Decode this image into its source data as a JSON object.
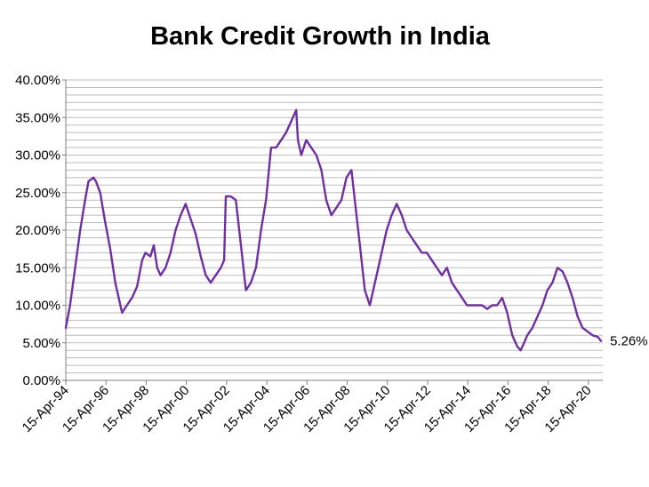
{
  "colors": {
    "series": "#7030a0",
    "grid": "#bdbdbd",
    "axis": "#7f7f7f"
  },
  "chart_data": {
    "type": "line",
    "title": "Bank Credit Growth in India",
    "xlabel": "",
    "ylabel": "",
    "ylim": [
      0,
      0.4
    ],
    "xlim": [
      "1994-04-15",
      "2021-01-01"
    ],
    "grid": true,
    "legend": "none",
    "y_ticks": [
      {
        "value": 0.0,
        "label": "0.00%"
      },
      {
        "value": 0.05,
        "label": "5.00%"
      },
      {
        "value": 0.1,
        "label": "10.00%"
      },
      {
        "value": 0.15,
        "label": "15.00%"
      },
      {
        "value": 0.2,
        "label": "20.00%"
      },
      {
        "value": 0.25,
        "label": "25.00%"
      },
      {
        "value": 0.3,
        "label": "30.00%"
      },
      {
        "value": 0.35,
        "label": "35.00%"
      },
      {
        "value": 0.4,
        "label": "40.00%"
      }
    ],
    "x_ticks": [
      {
        "value": "1994-04-15",
        "label": "15-Apr-94"
      },
      {
        "value": "1996-04-15",
        "label": "15-Apr-96"
      },
      {
        "value": "1998-04-15",
        "label": "15-Apr-98"
      },
      {
        "value": "2000-04-15",
        "label": "15-Apr-00"
      },
      {
        "value": "2002-04-15",
        "label": "15-Apr-02"
      },
      {
        "value": "2004-04-15",
        "label": "15-Apr-04"
      },
      {
        "value": "2006-04-15",
        "label": "15-Apr-06"
      },
      {
        "value": "2008-04-15",
        "label": "15-Apr-08"
      },
      {
        "value": "2010-04-15",
        "label": "15-Apr-10"
      },
      {
        "value": "2012-04-15",
        "label": "15-Apr-12"
      },
      {
        "value": "2014-04-15",
        "label": "15-Apr-14"
      },
      {
        "value": "2016-04-15",
        "label": "15-Apr-16"
      },
      {
        "value": "2018-04-15",
        "label": "15-Apr-18"
      },
      {
        "value": "2020-04-15",
        "label": "15-Apr-20"
      }
    ],
    "end_label": "5.26%",
    "series": [
      {
        "x": [
          "1994-04-15",
          "1994-07-01",
          "1994-10-01",
          "1995-01-01",
          "1995-04-01",
          "1995-06-01",
          "1995-09-01",
          "1995-10-15",
          "1996-01-01",
          "1996-04-01",
          "1996-07-01",
          "1996-10-01",
          "1997-01-01",
          "1997-02-01",
          "1997-05-01",
          "1997-08-01",
          "1997-11-01",
          "1998-02-01",
          "1998-04-01",
          "1998-07-01",
          "1998-09-01",
          "1998-11-01",
          "1999-01-01",
          "1999-04-01",
          "1999-07-01",
          "1999-10-01",
          "2000-01-01",
          "2000-04-01",
          "2000-07-01",
          "2000-10-01",
          "2001-01-01",
          "2001-04-01",
          "2001-07-01",
          "2001-10-01",
          "2002-01-01",
          "2002-03-01",
          "2002-04-01",
          "2002-07-01",
          "2002-10-01",
          "2003-01-01",
          "2003-04-01",
          "2003-07-01",
          "2003-10-01",
          "2004-01-01",
          "2004-04-01",
          "2004-07-01",
          "2004-10-01",
          "2005-01-01",
          "2005-04-01",
          "2005-07-01",
          "2005-10-01",
          "2005-11-01",
          "2006-01-01",
          "2006-04-01",
          "2006-07-01",
          "2006-10-01",
          "2007-01-01",
          "2007-04-01",
          "2007-07-01",
          "2007-10-01",
          "2008-01-01",
          "2008-04-01",
          "2008-07-01",
          "2008-10-01",
          "2008-12-01",
          "2009-03-01",
          "2009-06-01",
          "2009-09-01",
          "2009-12-01",
          "2010-04-01",
          "2010-07-01",
          "2010-10-01",
          "2011-01-01",
          "2011-04-01",
          "2011-07-01",
          "2011-10-01",
          "2012-01-01",
          "2012-04-01",
          "2012-07-01",
          "2012-10-01",
          "2013-01-01",
          "2013-04-01",
          "2013-07-01",
          "2013-10-01",
          "2014-01-01",
          "2014-04-01",
          "2014-07-01",
          "2014-10-01",
          "2015-01-01",
          "2015-04-01",
          "2015-07-01",
          "2015-10-01",
          "2016-01-01",
          "2016-04-01",
          "2016-07-01",
          "2016-10-01",
          "2016-12-01",
          "2017-02-01",
          "2017-04-01",
          "2017-07-01",
          "2017-10-01",
          "2018-01-01",
          "2018-04-01",
          "2018-07-01",
          "2018-10-01",
          "2019-01-01",
          "2019-04-01",
          "2019-07-01",
          "2019-10-01",
          "2020-01-01",
          "2020-04-01",
          "2020-07-01",
          "2020-10-01",
          "2020-12-01"
        ],
        "values": [
          0.07,
          0.1,
          0.15,
          0.2,
          0.24,
          0.265,
          0.27,
          0.265,
          0.25,
          0.21,
          0.175,
          0.13,
          0.1,
          0.09,
          0.1,
          0.11,
          0.125,
          0.16,
          0.17,
          0.165,
          0.18,
          0.15,
          0.14,
          0.15,
          0.17,
          0.2,
          0.22,
          0.235,
          0.215,
          0.195,
          0.165,
          0.14,
          0.13,
          0.14,
          0.15,
          0.16,
          0.245,
          0.245,
          0.24,
          0.18,
          0.12,
          0.13,
          0.15,
          0.2,
          0.24,
          0.31,
          0.31,
          0.32,
          0.33,
          0.345,
          0.36,
          0.32,
          0.3,
          0.32,
          0.31,
          0.3,
          0.28,
          0.24,
          0.22,
          0.23,
          0.24,
          0.27,
          0.28,
          0.22,
          0.18,
          0.12,
          0.1,
          0.13,
          0.16,
          0.2,
          0.22,
          0.235,
          0.22,
          0.2,
          0.19,
          0.18,
          0.17,
          0.17,
          0.16,
          0.15,
          0.14,
          0.15,
          0.13,
          0.12,
          0.11,
          0.1,
          0.1,
          0.1,
          0.1,
          0.095,
          0.1,
          0.1,
          0.11,
          0.09,
          0.06,
          0.045,
          0.04,
          0.05,
          0.06,
          0.07,
          0.085,
          0.1,
          0.12,
          0.13,
          0.15,
          0.145,
          0.13,
          0.11,
          0.085,
          0.07,
          0.065,
          0.06,
          0.058,
          0.0526
        ]
      }
    ]
  }
}
